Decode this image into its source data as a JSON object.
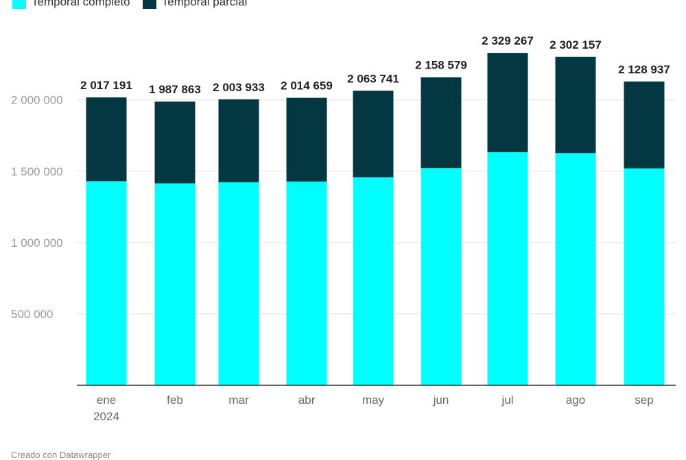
{
  "legend": {
    "series0": "Temporal completo",
    "series1": "Temporal parcial"
  },
  "footer": "Creado con Datawrapper",
  "chart_data": {
    "type": "bar",
    "stacked": true,
    "categories": [
      [
        "ene",
        "2024"
      ],
      [
        "feb"
      ],
      [
        "mar"
      ],
      [
        "abr"
      ],
      [
        "may"
      ],
      [
        "jun"
      ],
      [
        "jul"
      ],
      [
        "ago"
      ],
      [
        "sep"
      ]
    ],
    "series": [
      {
        "name": "Temporal completo",
        "color": "#00FFFF",
        "values": [
          1430000,
          1415000,
          1423000,
          1428000,
          1458000,
          1522000,
          1633000,
          1627000,
          1520000
        ]
      },
      {
        "name": "Temporal parcial",
        "color": "#033741",
        "values": [
          587191,
          572863,
          580933,
          586659,
          605741,
          636579,
          696267,
          675157,
          608937
        ]
      }
    ],
    "totals": [
      2017191,
      1987863,
      2003933,
      2014659,
      2063741,
      2158579,
      2329267,
      2302157,
      2128937
    ],
    "total_labels": [
      "2 017 191",
      "1 987 863",
      "2 003 933",
      "2 014 659",
      "2 063 741",
      "2 158 579",
      "2 329 267",
      "2 302 157",
      "2 128 937"
    ],
    "yticks": [
      500000,
      1000000,
      1500000,
      2000000
    ],
    "ytick_labels": [
      "500 000",
      "1 000 000",
      "1 500 000",
      "2 000 000"
    ],
    "ylim": [
      0,
      2330000
    ],
    "grid": true,
    "legend_position": "top-left"
  }
}
